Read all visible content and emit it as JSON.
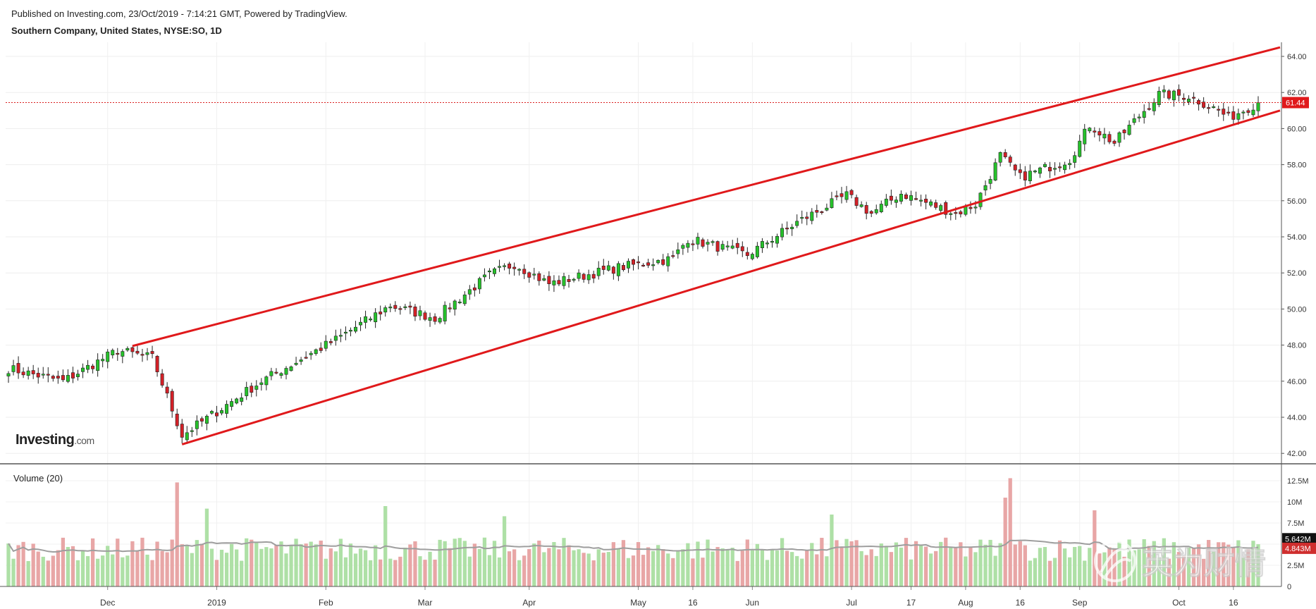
{
  "header": {
    "published": "Published on Investing.com, 23/Oct/2019 - 7:14:21 GMT, Powered by TradingView.",
    "symbol": "Southern Company, United States, NYSE:SO, 1D"
  },
  "watermarks": {
    "investing_logo": "Investing.com",
    "corner_logo": "英为财情"
  },
  "chart_data": [
    {
      "type": "candlestick",
      "title": "Southern Company, United States, NYSE:SO, 1D",
      "ylim": [
        41.6,
        64.6
      ],
      "y_ticks": [
        "42.00",
        "44.00",
        "46.00",
        "48.00",
        "50.00",
        "52.00",
        "54.00",
        "56.00",
        "58.00",
        "60.00",
        "62.00",
        "64.00"
      ],
      "x_ticks": [
        "Dec",
        "2019",
        "Feb",
        "Mar",
        "Apr",
        "May",
        "16",
        "Jun",
        "Jul",
        "17",
        "Aug",
        "16",
        "Sep",
        "Oct",
        "16"
      ],
      "last_price": "61.44",
      "last_price_value": 61.44,
      "trend_channel": {
        "upper": {
          "start": [
            "2018-12-10",
            47.95
          ],
          "end": [
            "2019-10-23",
            64.5
          ]
        },
        "lower": {
          "start": [
            "2018-12-24",
            42.5
          ],
          "end": [
            "2019-10-23",
            61.0
          ]
        }
      },
      "closes_key_points": [
        [
          "2018-11-05",
          46.7
        ],
        [
          "2018-11-20",
          46.0
        ],
        [
          "2018-12-05",
          47.7
        ],
        [
          "2018-12-14",
          47.3
        ],
        [
          "2018-12-24",
          43.0
        ],
        [
          "2019-01-15",
          46.0
        ],
        [
          "2019-02-05",
          48.3
        ],
        [
          "2019-02-20",
          50.2
        ],
        [
          "2019-03-05",
          49.5
        ],
        [
          "2019-03-20",
          51.9
        ],
        [
          "2019-03-27",
          52.5
        ],
        [
          "2019-04-05",
          51.4
        ],
        [
          "2019-04-25",
          52.3
        ],
        [
          "2019-05-10",
          52.8
        ],
        [
          "2019-05-15",
          53.9
        ],
        [
          "2019-05-31",
          53.0
        ],
        [
          "2019-06-15",
          54.8
        ],
        [
          "2019-06-28",
          56.3
        ],
        [
          "2019-07-05",
          55.3
        ],
        [
          "2019-07-15",
          56.4
        ],
        [
          "2019-07-30",
          55.3
        ],
        [
          "2019-08-05",
          55.8
        ],
        [
          "2019-08-12",
          58.5
        ],
        [
          "2019-08-16",
          57.3
        ],
        [
          "2019-08-30",
          58.3
        ],
        [
          "2019-09-05",
          60.2
        ],
        [
          "2019-09-12",
          59.2
        ],
        [
          "2019-09-25",
          61.9
        ],
        [
          "2019-10-03",
          61.8
        ],
        [
          "2019-10-11",
          61.0
        ],
        [
          "2019-10-15",
          60.6
        ],
        [
          "2019-10-23",
          61.44
        ]
      ]
    },
    {
      "type": "bar",
      "title": "Volume (20)",
      "ylim": [
        0,
        14000000
      ],
      "y_ticks": [
        "0",
        "2.5M",
        "5M",
        "7.5M",
        "10M",
        "12.5M"
      ],
      "last_values": [
        "5.642M",
        "4.843M"
      ],
      "moving_average_period": 20,
      "volume_spikes": [
        [
          "2018-12-21",
          12.3
        ],
        [
          "2018-12-31",
          9.2
        ],
        [
          "2019-02-19",
          9.5
        ],
        [
          "2019-03-25",
          8.3
        ],
        [
          "2019-06-25",
          8.5
        ],
        [
          "2019-08-13",
          10.5
        ],
        [
          "2019-08-14",
          12.8
        ],
        [
          "2019-09-06",
          9.0
        ]
      ]
    }
  ]
}
